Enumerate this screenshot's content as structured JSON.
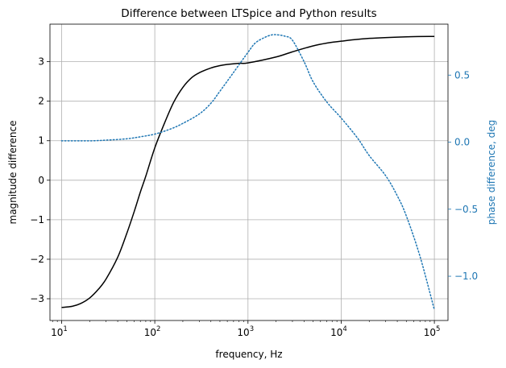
{
  "chart_data": {
    "type": "line",
    "title": "Difference between LTSpice and Python results",
    "xlabel": "frequency, Hz",
    "ylabel": "magnitude difference",
    "y2label": "phase difference, deg",
    "xscale": "log",
    "xlim": [
      7.5,
      140000
    ],
    "ylim": [
      -3.55,
      3.95
    ],
    "y2lim": [
      -1.33,
      0.88
    ],
    "grid": true,
    "x_ticks": [
      10,
      100,
      1000,
      10000,
      100000
    ],
    "x_tick_labels": [
      {
        "base": "10",
        "exp": "1"
      },
      {
        "base": "10",
        "exp": "2"
      },
      {
        "base": "10",
        "exp": "3"
      },
      {
        "base": "10",
        "exp": "4"
      },
      {
        "base": "10",
        "exp": "5"
      }
    ],
    "y_ticks": [
      -3,
      -2,
      -1,
      0,
      1,
      2,
      3
    ],
    "y_tick_labels": [
      "−3",
      "−2",
      "−1",
      "0",
      "1",
      "2",
      "3"
    ],
    "y2_ticks": [
      -1.0,
      -0.5,
      0.0,
      0.5
    ],
    "y2_tick_labels": [
      "−1.0",
      "−0.5",
      "0.0",
      "0.5"
    ],
    "series": [
      {
        "axis": "left",
        "color": "#000000",
        "style": "solid",
        "x": [
          10,
          13,
          16,
          20,
          25,
          30,
          40,
          50,
          60,
          70,
          80,
          100,
          130,
          160,
          200,
          250,
          300,
          400,
          500,
          600,
          800,
          1000,
          2000,
          3000,
          5000,
          7000,
          10000,
          20000,
          50000,
          100000
        ],
        "y": [
          -3.22,
          -3.19,
          -3.12,
          -2.98,
          -2.75,
          -2.5,
          -1.95,
          -1.35,
          -0.8,
          -0.3,
          0.1,
          0.82,
          1.5,
          1.98,
          2.35,
          2.6,
          2.72,
          2.84,
          2.9,
          2.93,
          2.96,
          2.97,
          3.12,
          3.25,
          3.4,
          3.47,
          3.52,
          3.59,
          3.63,
          3.64
        ]
      },
      {
        "axis": "right",
        "color": "#1f77b4",
        "style": "dotted",
        "x": [
          10,
          20,
          30,
          50,
          70,
          100,
          150,
          200,
          300,
          400,
          500,
          700,
          1000,
          1200,
          1500,
          1800,
          2100,
          2500,
          3000,
          4000,
          5000,
          7000,
          10000,
          15000,
          20000,
          30000,
          40000,
          50000,
          70000,
          100000
        ],
        "y": [
          0.01,
          0.01,
          0.015,
          0.025,
          0.04,
          0.06,
          0.1,
          0.14,
          0.21,
          0.29,
          0.38,
          0.52,
          0.67,
          0.74,
          0.78,
          0.8,
          0.8,
          0.79,
          0.76,
          0.6,
          0.45,
          0.3,
          0.18,
          0.03,
          -0.1,
          -0.25,
          -0.4,
          -0.55,
          -0.85,
          -1.25
        ]
      }
    ]
  }
}
